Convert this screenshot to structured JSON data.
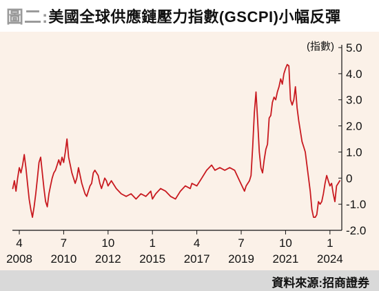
{
  "title": {
    "prefix": "圖二:",
    "text": "美國全球供應鏈壓力指數(GSCPI)小幅反彈"
  },
  "source": "資料來源:招商證券",
  "colors": {
    "line": "#c8191f",
    "panel_bg": "#fbf1e8",
    "source_bg": "#d9d9d9",
    "title_prefix": "#9a9a9a"
  },
  "chart_data": {
    "type": "line",
    "title": "美國全球供應鏈壓力指數(GSCPI)小幅反彈",
    "ylabel": "(指數)",
    "xlabel": "",
    "ylim": [
      -2.0,
      5.0
    ],
    "y_ticks": [
      "5.0",
      "4.0",
      "3.0",
      "2.0",
      "1.0",
      "0",
      "-1.0",
      "-2.0"
    ],
    "x_tick_months": [
      "4",
      "7",
      "10",
      "1",
      "4",
      "7",
      "10",
      "1"
    ],
    "x_tick_years": [
      "2008",
      "2010",
      "2012",
      "2015",
      "2017",
      "2019",
      "2021",
      "2024"
    ],
    "x_tick_dates": [
      "2008-04",
      "2010-07",
      "2012-10",
      "2015-01",
      "2017-04",
      "2019-07",
      "2021-10",
      "2024-01"
    ],
    "grid": false,
    "legend": "none",
    "series": [
      {
        "points": [
          [
            "2007-12",
            -0.4
          ],
          [
            "2008-01",
            -0.1
          ],
          [
            "2008-02",
            -0.5
          ],
          [
            "2008-03",
            0.0
          ],
          [
            "2008-04",
            0.4
          ],
          [
            "2008-05",
            0.2
          ],
          [
            "2008-06",
            0.5
          ],
          [
            "2008-07",
            0.9
          ],
          [
            "2008-08",
            0.4
          ],
          [
            "2008-09",
            -0.2
          ],
          [
            "2008-10",
            -0.8
          ],
          [
            "2008-11",
            -1.2
          ],
          [
            "2008-12",
            -1.5
          ],
          [
            "2009-01",
            -1.1
          ],
          [
            "2009-02",
            -0.6
          ],
          [
            "2009-03",
            0.0
          ],
          [
            "2009-04",
            0.6
          ],
          [
            "2009-05",
            0.8
          ],
          [
            "2009-06",
            0.2
          ],
          [
            "2009-07",
            -0.4
          ],
          [
            "2009-08",
            -0.9
          ],
          [
            "2009-09",
            -1.1
          ],
          [
            "2009-10",
            -0.6
          ],
          [
            "2009-11",
            -0.3
          ],
          [
            "2009-12",
            0.0
          ],
          [
            "2010-01",
            0.2
          ],
          [
            "2010-02",
            0.3
          ],
          [
            "2010-03",
            0.5
          ],
          [
            "2010-04",
            0.7
          ],
          [
            "2010-05",
            0.5
          ],
          [
            "2010-06",
            0.8
          ],
          [
            "2010-07",
            0.6
          ],
          [
            "2010-08",
            1.0
          ],
          [
            "2010-09",
            1.5
          ],
          [
            "2010-10",
            0.8
          ],
          [
            "2010-11",
            0.5
          ],
          [
            "2010-12",
            0.2
          ],
          [
            "2011-01",
            0.0
          ],
          [
            "2011-02",
            -0.2
          ],
          [
            "2011-03",
            0.0
          ],
          [
            "2011-04",
            0.4
          ],
          [
            "2011-05",
            0.1
          ],
          [
            "2011-06",
            -0.2
          ],
          [
            "2011-07",
            -0.4
          ],
          [
            "2011-08",
            -0.6
          ],
          [
            "2011-09",
            -0.7
          ],
          [
            "2011-10",
            -0.5
          ],
          [
            "2011-11",
            -0.3
          ],
          [
            "2011-12",
            -0.2
          ],
          [
            "2012-01",
            0.2
          ],
          [
            "2012-02",
            0.3
          ],
          [
            "2012-03",
            0.2
          ],
          [
            "2012-04",
            0.1
          ],
          [
            "2012-05",
            -0.2
          ],
          [
            "2012-06",
            -0.4
          ],
          [
            "2012-07",
            -0.2
          ],
          [
            "2012-08",
            0.0
          ],
          [
            "2012-09",
            -0.1
          ],
          [
            "2012-10",
            -0.3
          ],
          [
            "2012-11",
            -0.2
          ],
          [
            "2012-12",
            -0.1
          ],
          [
            "2013-03",
            -0.4
          ],
          [
            "2013-06",
            -0.6
          ],
          [
            "2013-09",
            -0.7
          ],
          [
            "2013-12",
            -0.6
          ],
          [
            "2014-03",
            -0.8
          ],
          [
            "2014-06",
            -0.6
          ],
          [
            "2014-09",
            -0.7
          ],
          [
            "2014-12",
            -0.5
          ],
          [
            "2015-01",
            -0.8
          ],
          [
            "2015-03",
            -0.6
          ],
          [
            "2015-06",
            -0.4
          ],
          [
            "2015-09",
            -0.5
          ],
          [
            "2015-12",
            -0.7
          ],
          [
            "2016-03",
            -0.8
          ],
          [
            "2016-06",
            -0.5
          ],
          [
            "2016-09",
            -0.3
          ],
          [
            "2016-12",
            -0.4
          ],
          [
            "2017-01",
            -0.2
          ],
          [
            "2017-04",
            -0.3
          ],
          [
            "2017-07",
            0.0
          ],
          [
            "2017-10",
            0.3
          ],
          [
            "2018-01",
            0.5
          ],
          [
            "2018-03",
            0.3
          ],
          [
            "2018-06",
            0.4
          ],
          [
            "2018-09",
            0.3
          ],
          [
            "2018-12",
            0.4
          ],
          [
            "2019-03",
            0.3
          ],
          [
            "2019-06",
            -0.1
          ],
          [
            "2019-09",
            -0.5
          ],
          [
            "2019-10",
            -0.3
          ],
          [
            "2019-12",
            -0.1
          ],
          [
            "2020-01",
            0.1
          ],
          [
            "2020-02",
            1.2
          ],
          [
            "2020-03",
            2.5
          ],
          [
            "2020-04",
            3.3
          ],
          [
            "2020-05",
            2.2
          ],
          [
            "2020-06",
            1.0
          ],
          [
            "2020-07",
            0.4
          ],
          [
            "2020-08",
            0.2
          ],
          [
            "2020-09",
            0.7
          ],
          [
            "2020-10",
            1.1
          ],
          [
            "2020-11",
            1.3
          ],
          [
            "2020-12",
            2.3
          ],
          [
            "2021-01",
            2.4
          ],
          [
            "2021-02",
            2.9
          ],
          [
            "2021-03",
            3.1
          ],
          [
            "2021-04",
            3.0
          ],
          [
            "2021-05",
            3.3
          ],
          [
            "2021-06",
            3.5
          ],
          [
            "2021-07",
            3.8
          ],
          [
            "2021-08",
            3.6
          ],
          [
            "2021-09",
            4.0
          ],
          [
            "2021-10",
            4.2
          ],
          [
            "2021-11",
            4.35
          ],
          [
            "2021-12",
            4.3
          ],
          [
            "2022-01",
            3.0
          ],
          [
            "2022-02",
            2.8
          ],
          [
            "2022-03",
            3.0
          ],
          [
            "2022-04",
            3.5
          ],
          [
            "2022-05",
            2.7
          ],
          [
            "2022-06",
            2.2
          ],
          [
            "2022-07",
            1.8
          ],
          [
            "2022-08",
            1.4
          ],
          [
            "2022-09",
            1.2
          ],
          [
            "2022-10",
            1.0
          ],
          [
            "2022-11",
            0.5
          ],
          [
            "2022-12",
            0.0
          ],
          [
            "2023-01",
            -0.5
          ],
          [
            "2023-02",
            -1.2
          ],
          [
            "2023-03",
            -1.5
          ],
          [
            "2023-04",
            -1.5
          ],
          [
            "2023-05",
            -1.4
          ],
          [
            "2023-06",
            -0.9
          ],
          [
            "2023-07",
            -1.0
          ],
          [
            "2023-08",
            -0.9
          ],
          [
            "2023-09",
            -0.6
          ],
          [
            "2023-10",
            -0.2
          ],
          [
            "2023-11",
            0.1
          ],
          [
            "2023-12",
            -0.1
          ],
          [
            "2024-01",
            -0.3
          ],
          [
            "2024-02",
            -0.2
          ],
          [
            "2024-03",
            -0.6
          ],
          [
            "2024-04",
            -0.9
          ],
          [
            "2024-05",
            -0.3
          ],
          [
            "2024-06",
            -0.2
          ],
          [
            "2024-07",
            -0.1
          ]
        ]
      }
    ]
  }
}
